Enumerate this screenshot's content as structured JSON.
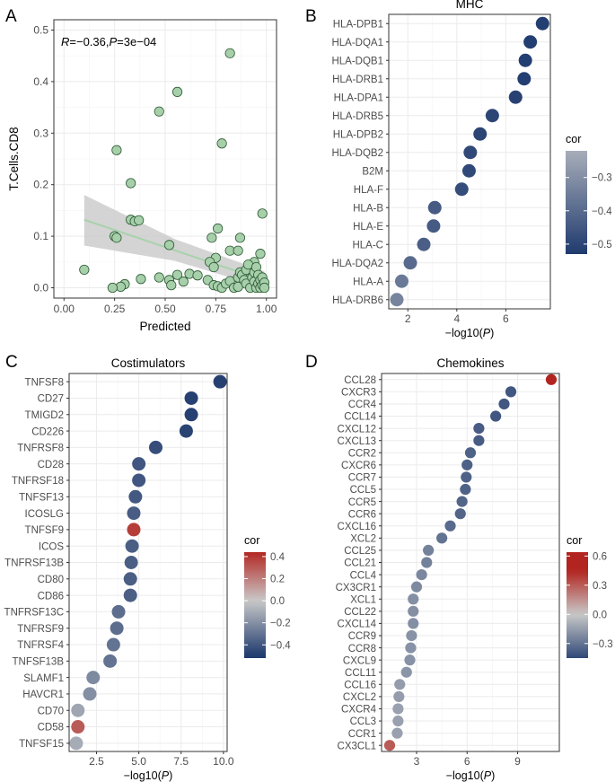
{
  "chart_data": [
    {
      "panel": "A",
      "type": "scatter",
      "title": "",
      "xlabel": "Predicted",
      "ylabel": "T.Cells.CD8",
      "annotation": {
        "r_label": "R",
        "r_value": "=−0.36,",
        "p_label": "P",
        "p_value": "=3e−04"
      },
      "xlim": [
        -0.05,
        1.05
      ],
      "ylim": [
        -0.02,
        0.52
      ],
      "xticks": [
        0,
        0.25,
        0.5,
        0.75,
        1
      ],
      "xtick_labels": [
        "0.00",
        "0.25",
        "0.50",
        "0.75",
        "1.00"
      ],
      "yticks": [
        0,
        0.1,
        0.2,
        0.3,
        0.4,
        0.5
      ],
      "ytick_labels": [
        "0.0",
        "0.1",
        "0.2",
        "0.3",
        "0.4",
        "0.5"
      ],
      "points": [
        [
          0.82,
          0.455
        ],
        [
          0.56,
          0.38
        ],
        [
          0.47,
          0.342
        ],
        [
          0.78,
          0.28
        ],
        [
          0.26,
          0.267
        ],
        [
          0.33,
          0.203
        ],
        [
          0.98,
          0.144
        ],
        [
          0.33,
          0.132
        ],
        [
          0.35,
          0.129
        ],
        [
          0.37,
          0.131
        ],
        [
          0.25,
          0.1
        ],
        [
          0.26,
          0.097
        ],
        [
          0.73,
          0.097
        ],
        [
          0.76,
          0.115
        ],
        [
          0.87,
          0.097
        ],
        [
          0.52,
          0.083
        ],
        [
          0.75,
          0.058
        ],
        [
          0.82,
          0.072
        ],
        [
          0.86,
          0.072
        ],
        [
          0.97,
          0.066
        ],
        [
          0.1,
          0.035
        ],
        [
          0.72,
          0.05
        ],
        [
          0.74,
          0.04
        ],
        [
          0.94,
          0.05
        ],
        [
          0.3,
          0.007
        ],
        [
          0.28,
          0.002
        ],
        [
          0.24,
          0.0
        ],
        [
          0.38,
          0.017
        ],
        [
          0.47,
          0.02
        ],
        [
          0.52,
          0.015
        ],
        [
          0.53,
          0.005
        ],
        [
          0.56,
          0.025
        ],
        [
          0.59,
          0.012
        ],
        [
          0.62,
          0.027
        ],
        [
          0.66,
          0.024
        ],
        [
          0.71,
          0.015
        ],
        [
          0.74,
          0.005
        ],
        [
          0.76,
          0.003
        ],
        [
          0.78,
          0.0
        ],
        [
          0.8,
          0.008
        ],
        [
          0.82,
          0.013
        ],
        [
          0.84,
          0.0
        ],
        [
          0.86,
          0.002
        ],
        [
          0.86,
          0.02
        ],
        [
          0.87,
          0.03
        ],
        [
          0.88,
          0.025
        ],
        [
          0.89,
          0.015
        ],
        [
          0.9,
          0.008
        ],
        [
          0.9,
          0.035
        ],
        [
          0.91,
          0.045
        ],
        [
          0.92,
          0.0
        ],
        [
          0.93,
          0.02
        ],
        [
          0.94,
          0.012
        ],
        [
          0.94,
          0.03
        ],
        [
          0.95,
          0.0
        ],
        [
          0.95,
          0.04
        ],
        [
          0.96,
          0.008
        ],
        [
          0.96,
          0.025
        ],
        [
          0.97,
          0.015
        ],
        [
          0.97,
          0.0
        ],
        [
          0.98,
          0.02
        ],
        [
          0.98,
          0.005
        ],
        [
          0.99,
          0.01
        ],
        [
          0.99,
          0.0
        ]
      ],
      "fit": {
        "x": [
          0.1,
          0.99
        ],
        "y": [
          0.132,
          0.014
        ]
      },
      "band": {
        "x": [
          0.1,
          0.55,
          0.99
        ],
        "upper": [
          0.18,
          0.094,
          0.032
        ],
        "lower": [
          0.082,
          0.052,
          0.0
        ]
      },
      "point_color": "#a6cfaa",
      "point_edge": "#2d5a35",
      "fit_color": "#a8d2ab",
      "band_color": "#cccccc"
    },
    {
      "panel": "B",
      "type": "dot",
      "title": "MHC",
      "xlabel": "−log10(",
      "xlabel_italic": "P",
      "xlabel_end": ")",
      "categories": [
        "HLA-DPB1",
        "HLA-DQA1",
        "HLA-DQB1",
        "HLA-DRB1",
        "HLA-DPA1",
        "HLA-DRB5",
        "HLA-DPB2",
        "HLA-DQB2",
        "B2M",
        "HLA-F",
        "HLA-B",
        "HLA-E",
        "HLA-C",
        "HLA-DQA2",
        "HLA-A",
        "HLA-DRB6"
      ],
      "values": [
        7.5,
        7.0,
        6.8,
        6.75,
        6.4,
        5.45,
        4.95,
        4.55,
        4.5,
        4.2,
        3.1,
        3.05,
        2.65,
        2.1,
        1.75,
        1.55
      ],
      "cor": [
        -0.52,
        -0.52,
        -0.52,
        -0.52,
        -0.51,
        -0.5,
        -0.5,
        -0.49,
        -0.49,
        -0.48,
        -0.44,
        -0.44,
        -0.43,
        -0.4,
        -0.36,
        -0.33
      ],
      "xlim": [
        1.22,
        7.82
      ],
      "xticks": [
        2,
        4,
        6
      ],
      "xtick_labels": [
        "2",
        "4",
        "6"
      ],
      "legend": {
        "title": "cor",
        "min": -0.53,
        "max": -0.22,
        "ticks": [
          -0.3,
          -0.4,
          -0.5
        ],
        "tick_labels": [
          "−0.3",
          "−0.4",
          "−0.5"
        ]
      },
      "colors": {
        "low": "#1f3a6e",
        "high": "#a7adb9"
      }
    },
    {
      "panel": "C",
      "type": "dot",
      "title": "Costimulators",
      "xlabel": "−log10(",
      "xlabel_italic": "P",
      "xlabel_end": ")",
      "categories": [
        "TNFSF8",
        "CD27",
        "TMIGD2",
        "CD226",
        "TNFRSF8",
        "CD28",
        "TNFRSF18",
        "TNFSF13",
        "ICOSLG",
        "TNFSF9",
        "ICOS",
        "TNFRSF13B",
        "CD80",
        "CD86",
        "TNFRSF13C",
        "TNFRSF9",
        "TNFRSF4",
        "TNFSF13B",
        "SLAMF1",
        "HAVCR1",
        "CD70",
        "CD58",
        "TNFSF15"
      ],
      "values": [
        9.8,
        8.1,
        8.1,
        7.8,
        6.0,
        5.0,
        5.0,
        4.8,
        4.7,
        4.7,
        4.6,
        4.55,
        4.5,
        4.5,
        3.8,
        3.7,
        3.5,
        3.3,
        2.3,
        2.1,
        1.4,
        1.4,
        1.3
      ],
      "cor": [
        -0.48,
        -0.48,
        -0.48,
        -0.47,
        -0.43,
        -0.4,
        -0.4,
        -0.39,
        -0.38,
        0.38,
        -0.37,
        -0.37,
        -0.37,
        -0.37,
        -0.32,
        -0.32,
        -0.3,
        -0.3,
        -0.22,
        -0.2,
        -0.12,
        0.3,
        -0.1
      ],
      "xlim": [
        0.88,
        10.22
      ],
      "xticks": [
        2.5,
        5.0,
        7.5,
        10.0
      ],
      "xtick_labels": [
        "2.5",
        "5.0",
        "7.5",
        "10.0"
      ],
      "legend": {
        "title": "cor",
        "min": -0.52,
        "max": 0.44,
        "ticks": [
          0.4,
          0.2,
          0,
          -0.2,
          -0.4
        ],
        "tick_labels": [
          "0.4",
          "0.2",
          "0.0",
          "−0.2",
          "−0.4"
        ]
      },
      "colors": {
        "low": "#1f3a6e",
        "mid": "#c8c8c8",
        "high": "#b2241f"
      }
    },
    {
      "panel": "D",
      "type": "dot",
      "title": "Chemokines",
      "xlabel": "−log10(",
      "xlabel_italic": "P",
      "xlabel_end": ")",
      "categories": [
        "CCL28",
        "CXCR3",
        "CCR4",
        "CCL14",
        "CXCL12",
        "CXCL13",
        "CCR2",
        "CXCR6",
        "CCR7",
        "CCL5",
        "CCR5",
        "CCR6",
        "CXCL16",
        "XCL2",
        "CCL25",
        "CCL21",
        "CCL4",
        "CX3CR1",
        "XCL1",
        "CCL22",
        "CXCL14",
        "CCR9",
        "CCR8",
        "CXCL9",
        "CCL11",
        "CCL16",
        "CXCL2",
        "CXCR4",
        "CCL3",
        "CCR1",
        "CX3CL1"
      ],
      "values": [
        11.0,
        8.6,
        8.2,
        7.7,
        6.7,
        6.7,
        6.2,
        6.0,
        5.95,
        5.9,
        5.7,
        5.6,
        5.0,
        4.5,
        3.7,
        3.6,
        3.3,
        3.0,
        2.8,
        2.8,
        2.8,
        2.7,
        2.65,
        2.6,
        2.4,
        2.0,
        1.95,
        1.9,
        1.9,
        1.85,
        1.4
      ],
      "cor": [
        0.6,
        -0.4,
        -0.4,
        -0.4,
        -0.38,
        -0.38,
        -0.36,
        -0.36,
        -0.36,
        -0.36,
        -0.35,
        -0.35,
        -0.33,
        -0.3,
        -0.25,
        -0.25,
        -0.23,
        -0.22,
        -0.2,
        -0.2,
        -0.2,
        -0.19,
        -0.19,
        -0.19,
        -0.18,
        -0.15,
        -0.15,
        -0.14,
        -0.14,
        -0.14,
        0.3
      ],
      "xlim": [
        0.92,
        11.48
      ],
      "xticks": [
        3,
        6,
        9
      ],
      "xtick_labels": [
        "3",
        "6",
        "9"
      ],
      "legend": {
        "title": "cor",
        "min": -0.45,
        "max": 0.64,
        "ticks": [
          0.6,
          0.3,
          0,
          -0.3
        ],
        "tick_labels": [
          "0.6",
          "0.3",
          "0.0",
          "−0.3"
        ]
      },
      "colors": {
        "low": "#1f3a6e",
        "mid": "#c8c8c8",
        "high": "#b2241f"
      }
    }
  ],
  "panel_labels": [
    "A",
    "B",
    "C",
    "D"
  ]
}
